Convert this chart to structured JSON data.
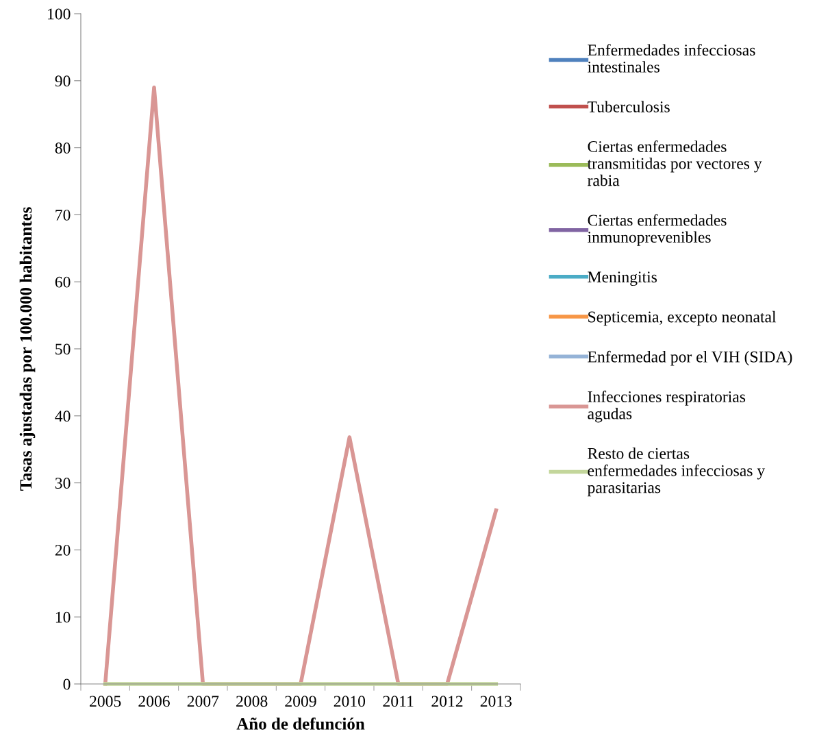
{
  "chart_data": {
    "type": "line",
    "xlabel": "Año de defunción",
    "ylabel": "Tasas ajustadas por 100.000 habitantes",
    "categories": [
      "2005",
      "2006",
      "2007",
      "2008",
      "2009",
      "2010",
      "2011",
      "2012",
      "2013"
    ],
    "ylim": [
      0,
      100
    ],
    "yticks": [
      0,
      10,
      20,
      30,
      40,
      50,
      60,
      70,
      80,
      90,
      100
    ],
    "grid": false,
    "legend": "right",
    "marker": "none",
    "line_style": "solid",
    "series": [
      {
        "name": "Enfermedades infecciosas intestinales",
        "color": "#4f81bd",
        "values": [
          null,
          null,
          null,
          null,
          null,
          null,
          null,
          null,
          null
        ]
      },
      {
        "name": "Tuberculosis",
        "color": "#c0504d",
        "values": [
          null,
          null,
          null,
          null,
          null,
          null,
          null,
          null,
          null
        ]
      },
      {
        "name": "Ciertas enfermedades transmitidas por vectores y rabia",
        "color": "#9bbb59",
        "values": [
          null,
          null,
          null,
          null,
          null,
          null,
          null,
          null,
          null
        ]
      },
      {
        "name": "Ciertas enfermedades inmunoprevenibles",
        "color": "#8064a2",
        "values": [
          null,
          null,
          null,
          null,
          null,
          null,
          null,
          null,
          null
        ]
      },
      {
        "name": "Meningitis",
        "color": "#4bacc6",
        "values": [
          null,
          null,
          null,
          null,
          null,
          null,
          null,
          null,
          null
        ]
      },
      {
        "name": "Septicemia, excepto neonatal",
        "color": "#f79646",
        "values": [
          null,
          null,
          null,
          null,
          null,
          null,
          null,
          null,
          null
        ]
      },
      {
        "name": "Enfermedad por el VIH (SIDA)",
        "color": "#95b3d7",
        "values": [
          null,
          null,
          null,
          null,
          null,
          null,
          null,
          null,
          null
        ]
      },
      {
        "name": "Infecciones respiratorias agudas",
        "color": "#d99694",
        "values": [
          0,
          89,
          0,
          0,
          0,
          36.8,
          0,
          0,
          25.9
        ]
      },
      {
        "name": "Resto de ciertas enfermedades infecciosas y parasitarias",
        "color": "#c3d69b",
        "values": [
          0,
          0,
          0,
          0,
          0,
          0,
          0,
          0,
          0
        ]
      }
    ]
  }
}
